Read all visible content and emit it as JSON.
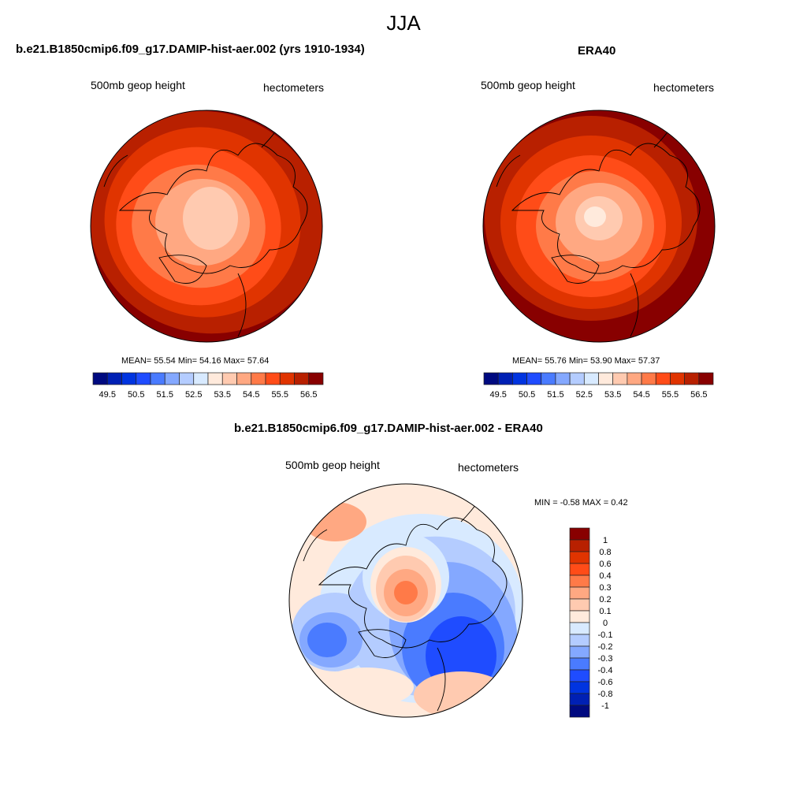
{
  "figure_title": "JJA",
  "panels": [
    {
      "title": "b.e21.B1850cmip6.f09_g17.DAMIP-hist-aer.002 (yrs 1910-1934)",
      "left_label": "500mb geop height",
      "right_label": "hectometers",
      "stats": "MEAN=  55.54  Min=  54.16  Max=  57.64"
    },
    {
      "title": "ERA40",
      "left_label": "500mb geop height",
      "right_label": "hectometers",
      "stats": "MEAN=  55.76  Min=  53.90  Max=  57.37"
    },
    {
      "title": "b.e21.B1850cmip6.f09_g17.DAMIP-hist-aer.002 - ERA40",
      "left_label": "500mb geop height",
      "right_label": "hectometers",
      "stats": "MIN =  -0.58 MAX =   0.42"
    }
  ],
  "chart_data": [
    {
      "type": "heatmap",
      "projection": "north-polar-stereographic",
      "variable": "500mb geop height",
      "units": "hectometers",
      "mean": 55.54,
      "min": 54.16,
      "max": 57.64,
      "colorbar": {
        "orientation": "horizontal",
        "levels": [
          49.5,
          50,
          50.5,
          51,
          51.5,
          52,
          52.5,
          53,
          53.5,
          54,
          54.5,
          55,
          55.5,
          56,
          56.5
        ],
        "tick_labels": [
          "49.5",
          "50.5",
          "51.5",
          "52.5",
          "53.5",
          "54.5",
          "55.5",
          "56.5"
        ]
      }
    },
    {
      "type": "heatmap",
      "projection": "north-polar-stereographic",
      "variable": "500mb geop height",
      "units": "hectometers",
      "mean": 55.76,
      "min": 53.9,
      "max": 57.37,
      "colorbar": {
        "orientation": "horizontal",
        "levels": [
          49.5,
          50,
          50.5,
          51,
          51.5,
          52,
          52.5,
          53,
          53.5,
          54,
          54.5,
          55,
          55.5,
          56,
          56.5
        ],
        "tick_labels": [
          "49.5",
          "50.5",
          "51.5",
          "52.5",
          "53.5",
          "54.5",
          "55.5",
          "56.5"
        ]
      }
    },
    {
      "type": "heatmap",
      "projection": "north-polar-stereographic",
      "variable": "500mb geop height difference",
      "units": "hectometers",
      "min": -0.58,
      "max": 0.42,
      "colorbar": {
        "orientation": "vertical",
        "levels": [
          1,
          0.8,
          0.6,
          0.4,
          0.3,
          0.2,
          0.1,
          0,
          -0.1,
          -0.2,
          -0.3,
          -0.4,
          -0.6,
          -0.8,
          -1
        ],
        "tick_labels": [
          "1",
          "0.8",
          "0.6",
          "0.4",
          "0.3",
          "0.2",
          "0.1",
          "0",
          "-0.1",
          "-0.2",
          "-0.3",
          "-0.4",
          "-0.6",
          "-0.8",
          "-1"
        ]
      }
    }
  ],
  "colors": [
    "#000a80",
    "#0020b4",
    "#0034e0",
    "#1f4cff",
    "#4a7bff",
    "#84a8ff",
    "#b4ccff",
    "#d8eaff",
    "#ffeadc",
    "#ffcab0",
    "#ffa882",
    "#ff7a48",
    "#ff4c18",
    "#e03400",
    "#b82000",
    "#880000"
  ]
}
